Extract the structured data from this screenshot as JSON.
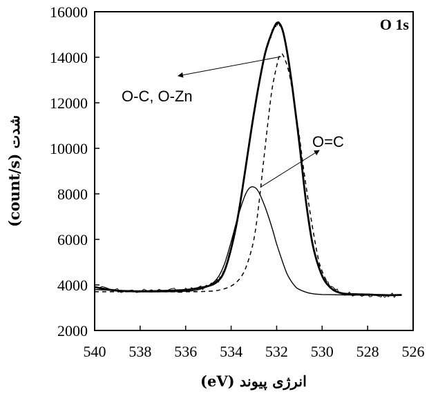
{
  "chart_data": {
    "type": "line",
    "title": "",
    "panel_label": "O 1s",
    "xlabel": "انرژی پیوند (eV)",
    "ylabel": "شدت (count/s)",
    "xlim": [
      540,
      526
    ],
    "x_reversed": true,
    "ylim": [
      2000,
      16000
    ],
    "x_ticks": [
      "540",
      "538",
      "536",
      "534",
      "532",
      "530",
      "528",
      "526"
    ],
    "y_ticks": [
      "2000",
      "4000",
      "6000",
      "8000",
      "10000",
      "12000",
      "14000",
      "16000"
    ],
    "grid": false,
    "series": [
      {
        "style": "solid-thick-noisy",
        "x": [
          540.0,
          539.0,
          538.0,
          537.0,
          536.0,
          535.5,
          535.0,
          534.6,
          534.3,
          534.0,
          533.7,
          533.4,
          533.1,
          532.8,
          532.5,
          532.2,
          532.0,
          531.85,
          531.7,
          531.5,
          531.3,
          531.0,
          530.7,
          530.4,
          530.0,
          529.6,
          529.2,
          528.8,
          528.0,
          527.5,
          527.0,
          526.5
        ],
        "y": [
          3900,
          3750,
          3720,
          3740,
          3780,
          3850,
          3950,
          4150,
          4600,
          5600,
          7000,
          8900,
          10900,
          12700,
          14200,
          15100,
          15500,
          15450,
          15050,
          14000,
          12600,
          10200,
          7600,
          5700,
          4400,
          3850,
          3650,
          3600,
          3580,
          3560,
          3550,
          3560
        ]
      },
      {
        "name": "O-C, O-Zn",
        "style": "dashed",
        "x": [
          540.0,
          538.0,
          536.0,
          535.0,
          534.5,
          534.0,
          533.6,
          533.3,
          533.0,
          532.8,
          532.6,
          532.4,
          532.2,
          532.0,
          531.9,
          531.8,
          531.7,
          531.5,
          531.3,
          531.0,
          530.8,
          530.5,
          530.2,
          530.0,
          529.7,
          529.4,
          529.0,
          528.0,
          527.0,
          526.5
        ],
        "y": [
          3700,
          3700,
          3700,
          3720,
          3780,
          3950,
          4300,
          4900,
          6000,
          7400,
          9200,
          11000,
          12600,
          13600,
          14000,
          14150,
          14050,
          13500,
          12500,
          10500,
          9000,
          7000,
          5300,
          4600,
          4000,
          3750,
          3620,
          3570,
          3560,
          3560
        ]
      },
      {
        "name": "O=C",
        "style": "solid-thin",
        "x": [
          540.0,
          538.0,
          537.0,
          536.0,
          535.5,
          535.0,
          534.6,
          534.3,
          534.0,
          533.7,
          533.4,
          533.2,
          533.0,
          532.8,
          532.5,
          532.2,
          532.0,
          531.7,
          531.5,
          531.2,
          531.0,
          530.6,
          530.3,
          530.0,
          529.5,
          529.0,
          528.0,
          527.0,
          526.5
        ],
        "y": [
          3800,
          3700,
          3700,
          3720,
          3780,
          3950,
          4300,
          4900,
          5900,
          7000,
          7900,
          8250,
          8300,
          8100,
          7400,
          6500,
          5800,
          4900,
          4400,
          3950,
          3800,
          3650,
          3600,
          3580,
          3570,
          3560,
          3550,
          3550,
          3550
        ]
      }
    ],
    "annotations": [
      {
        "text": "O-C, O-Zn"
      },
      {
        "text": "O=C"
      }
    ]
  }
}
